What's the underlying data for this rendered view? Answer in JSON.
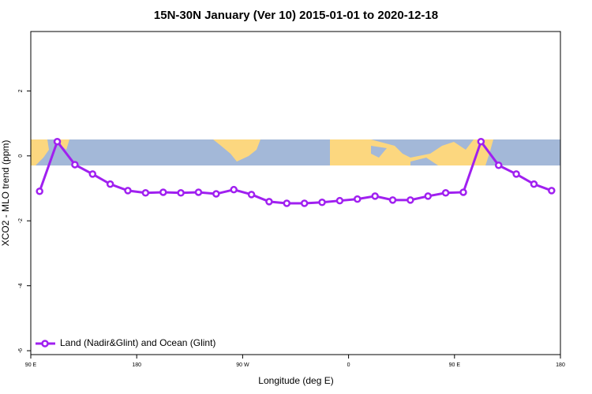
{
  "chart_data": {
    "type": "line",
    "title": "15N-30N January (Ver 10)   2015-01-01 to 2020-12-18",
    "x_label": "Longitude (deg E)",
    "y_label": "XCO2 - MLO trend (ppm)",
    "x": [
      97.5,
      112.5,
      127.5,
      142.5,
      157.5,
      172.5,
      187.5,
      202.5,
      217.5,
      232.5,
      247.5,
      262.5,
      277.5,
      292.5,
      307.5,
      322.5,
      337.5,
      352.5,
      367.5,
      382.5,
      397.5,
      412.5,
      427.5,
      442.5,
      457.5,
      472.5,
      487.5,
      502.5,
      517.5,
      532.5
    ],
    "series": [
      {
        "name": "Land (Nadir&Glint) and Ocean (Glint)",
        "color": "#a020f0",
        "values": [
          -1.09,
          0.44,
          -0.27,
          -0.56,
          -0.87,
          -1.07,
          -1.14,
          -1.12,
          -1.14,
          -1.12,
          -1.17,
          -1.04,
          -1.19,
          -1.41,
          -1.46,
          -1.46,
          -1.43,
          -1.38,
          -1.33,
          -1.24,
          -1.36,
          -1.36,
          -1.24,
          -1.14,
          -1.12,
          0.44,
          -0.29,
          -0.56,
          -0.87,
          -1.07
        ]
      }
    ],
    "xlim": [
      90,
      540
    ],
    "xticks": [
      {
        "value": 90,
        "label": "90 E"
      },
      180,
      {
        "value": 270,
        "label": "90 W"
      },
      {
        "value": 360,
        "label": "0"
      },
      {
        "value": 450,
        "label": "90 E"
      },
      {
        "value": 540,
        "label": "180"
      }
    ],
    "ylim": [
      -6.12,
      3.83
    ],
    "yticks": [
      -6,
      -4,
      -2,
      0,
      2
    ],
    "legend": "bottom-left"
  }
}
